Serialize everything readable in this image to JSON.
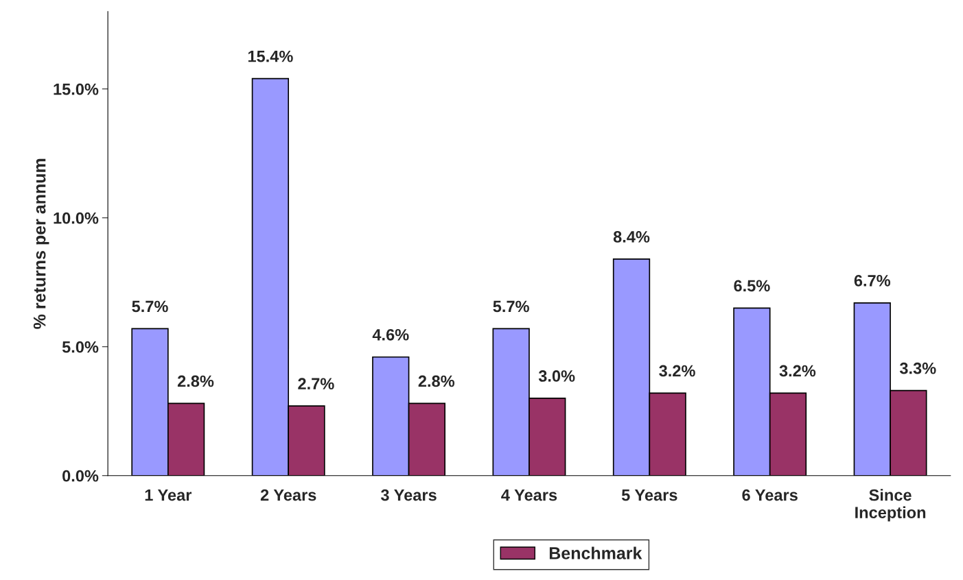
{
  "chart_data": {
    "type": "bar",
    "ylabel": "% returns per annum",
    "categories": [
      "1 Year",
      "2 Years",
      "3 Years",
      "4 Years",
      "5 Years",
      "6 Years",
      "Since\nInception"
    ],
    "series": [
      {
        "color": "#9999ff",
        "values": [
          5.7,
          15.4,
          4.6,
          5.7,
          8.4,
          6.5,
          6.7
        ],
        "value_labels": [
          "5.7%",
          "15.4%",
          "4.6%",
          "5.7%",
          "8.4%",
          "6.5%",
          "6.7%"
        ]
      },
      {
        "name": "Benchmark",
        "color": "#993366",
        "values": [
          2.8,
          2.7,
          2.8,
          3.0,
          3.2,
          3.2,
          3.3
        ],
        "value_labels": [
          "2.8%",
          "2.7%",
          "2.8%",
          "3.0%",
          "3.2%",
          "3.2%",
          "3.3%"
        ]
      }
    ],
    "ylim": [
      0,
      18
    ],
    "yticks": [
      {
        "value": 0,
        "label": "0.0%"
      },
      {
        "value": 5,
        "label": "5.0%"
      },
      {
        "value": 10,
        "label": "10.0%"
      },
      {
        "value": 15,
        "label": "15.0%"
      }
    ],
    "grid": false,
    "legend": "bottom"
  }
}
